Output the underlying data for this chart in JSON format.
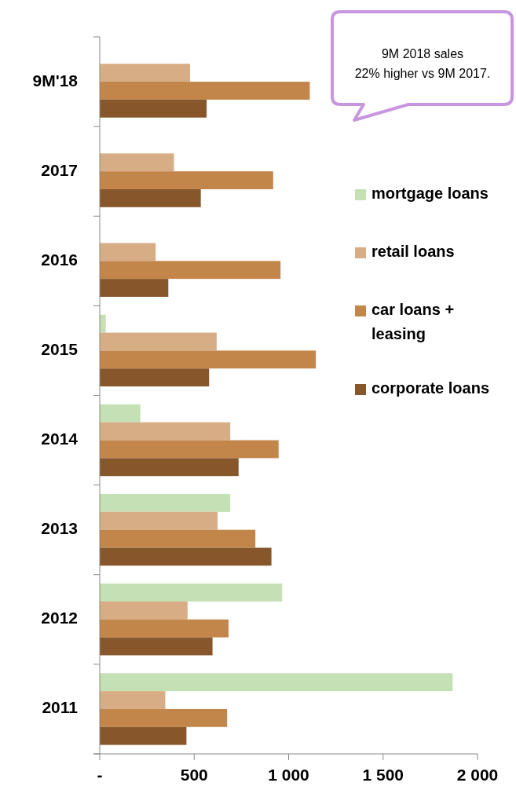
{
  "chart_data": {
    "type": "bar",
    "orientation": "horizontal",
    "categories": [
      "9M'18",
      "2017",
      "2016",
      "2015",
      "2014",
      "2013",
      "2012",
      "2011"
    ],
    "series": [
      {
        "name": "mortgage loans",
        "color": "#c5e0b4",
        "values": [
          null,
          null,
          null,
          32,
          215,
          691,
          966,
          1868
        ]
      },
      {
        "name": "retail loans",
        "color": "#d6ad85",
        "values": [
          478,
          393,
          296,
          619,
          691,
          624,
          465,
          347
        ]
      },
      {
        "name": "car loans + leasing",
        "color": "#c2854a",
        "values": [
          1112,
          918,
          957,
          1144,
          947,
          824,
          682,
          674
        ]
      },
      {
        "name": "corporate loans",
        "color": "#87572b",
        "values": [
          566,
          535,
          363,
          579,
          735,
          909,
          597,
          459
        ]
      }
    ],
    "xlim": [
      0,
      2000
    ],
    "xticks": [
      {
        "value": 0,
        "label": "-"
      },
      500,
      {
        "value": 1000,
        "label": "1 000"
      },
      {
        "value": 1500,
        "label": "1 500"
      },
      {
        "value": 2000,
        "label": "2 000"
      }
    ],
    "legend": "right",
    "annotations": [
      "9M 2018 sales\n22% higher vs 9M 2017."
    ]
  }
}
